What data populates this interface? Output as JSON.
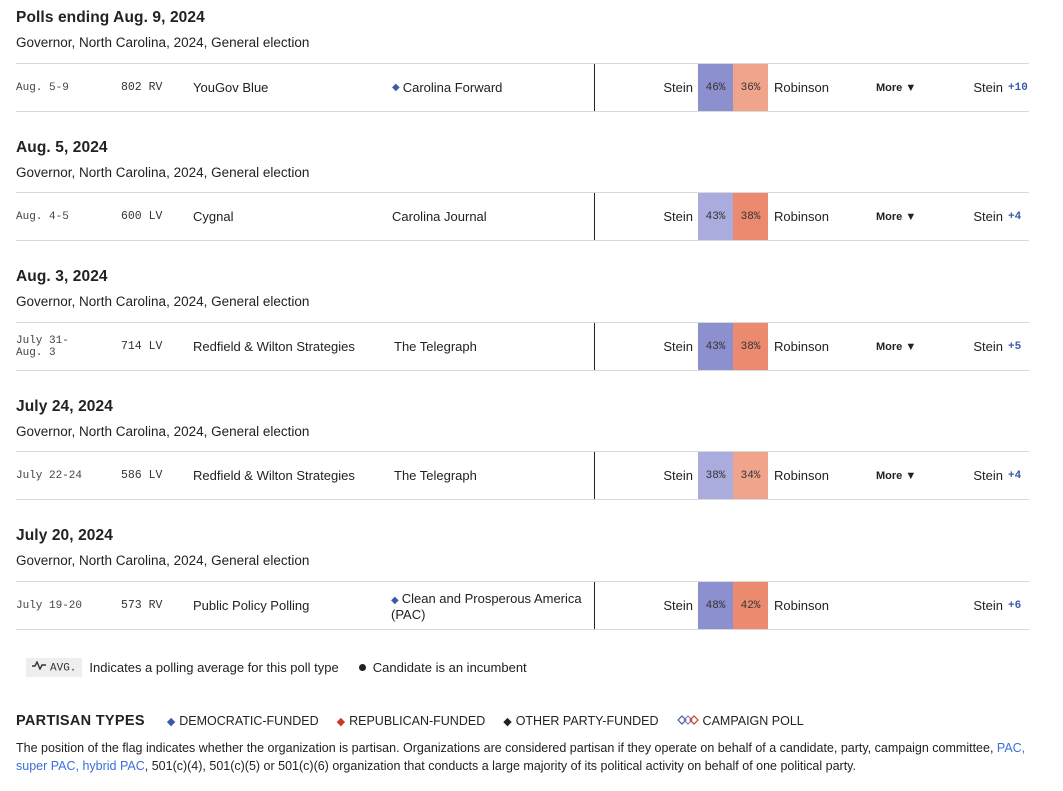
{
  "colors": {
    "dem_strong": "#8c90cf",
    "dem_light": "#a9acdc",
    "rep_strong": "#ec8a6f",
    "rep_light": "#f1a48c",
    "dem_accent": "#3a5ba9",
    "rep_accent": "#c83a26",
    "link": "#3a6fd6"
  },
  "groups": [
    {
      "title": "Polls ending Aug. 9, 2024",
      "subtitle": "Governor, North Carolina, 2024, General election",
      "row": {
        "dates": "Aug. 5-9",
        "sample": "802 RV",
        "pollster": "YouGov Blue",
        "sponsor": "Carolina Forward",
        "sponsor_partisan": "democratic-funded",
        "candidate1": "Stein",
        "pct1": "46%",
        "pct2": "36%",
        "candidate2": "Robinson",
        "more": "More ▼",
        "winner": "Stein",
        "margin": "+10"
      }
    },
    {
      "title": "Aug. 5, 2024",
      "subtitle": "Governor, North Carolina, 2024, General election",
      "row": {
        "dates": "Aug. 4-5",
        "sample": "600 LV",
        "pollster": "Cygnal",
        "sponsor": "Carolina Journal",
        "sponsor_partisan": "",
        "candidate1": "Stein",
        "pct1": "43%",
        "pct2": "38%",
        "candidate2": "Robinson",
        "more": "More ▼",
        "winner": "Stein",
        "margin": "+4"
      }
    },
    {
      "title": "Aug. 3, 2024",
      "subtitle": "Governor, North Carolina, 2024, General election",
      "row": {
        "dates": "July 31- Aug. 3",
        "sample": "714 LV",
        "pollster": "Redfield & Wilton Strategies",
        "sponsor": "The Telegraph",
        "sponsor_partisan": "",
        "candidate1": "Stein",
        "pct1": "43%",
        "pct2": "38%",
        "candidate2": "Robinson",
        "more": "More ▼",
        "winner": "Stein",
        "margin": "+5"
      }
    },
    {
      "title": "July 24, 2024",
      "subtitle": "Governor, North Carolina, 2024, General election",
      "row": {
        "dates": "July 22-24",
        "sample": "586 LV",
        "pollster": "Redfield & Wilton Strategies",
        "sponsor": "The Telegraph",
        "sponsor_partisan": "",
        "candidate1": "Stein",
        "pct1": "38%",
        "pct2": "34%",
        "candidate2": "Robinson",
        "more": "More ▼",
        "winner": "Stein",
        "margin": "+4"
      }
    },
    {
      "title": "July 20, 2024",
      "subtitle": "Governor, North Carolina, 2024, General election",
      "row": {
        "dates": "July 19-20",
        "sample": "573 RV",
        "pollster": "Public Policy Polling",
        "sponsor": "Clean and Prosperous America (PAC)",
        "sponsor_partisan": "democratic-funded",
        "candidate1": "Stein",
        "pct1": "48%",
        "pct2": "42%",
        "candidate2": "Robinson",
        "more": "",
        "winner": "Stein",
        "margin": "+6"
      }
    }
  ],
  "legend": {
    "avg_badge": "AVG.",
    "avg_text": "Indicates a polling average for this poll type",
    "incumbent_text": "Candidate is an incumbent"
  },
  "partisan": {
    "header": "PARTISAN TYPES",
    "types": [
      {
        "label": "DEMOCRATIC-FUNDED",
        "icon": "blue-diamond-icon",
        "color": "#3a5ba9"
      },
      {
        "label": "REPUBLICAN-FUNDED",
        "icon": "red-diamond-icon",
        "color": "#c83a26"
      },
      {
        "label": "OTHER PARTY-FUNDED",
        "icon": "black-diamond-icon",
        "color": "#222222"
      },
      {
        "label": "CAMPAIGN POLL",
        "icon": "campaign-diamonds-icon",
        "color": "#8a7bbd"
      }
    ],
    "explain_part1": "The position of the flag indicates whether the organization is partisan. Organizations are considered partisan if they operate on behalf of a candidate, party, campaign committee, ",
    "explain_link": "PAC, super PAC, hybrid PAC",
    "explain_part2": ", 501(c)(4), 501(c)(5) or 501(c)(6) organization that conducts a large majority of its political activity on behalf of one political party."
  }
}
